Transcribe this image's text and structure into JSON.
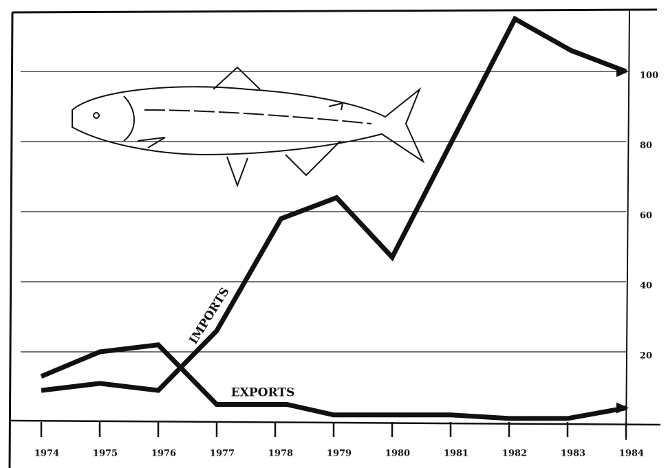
{
  "chart_data": {
    "type": "line",
    "annotations": [
      "IMPORTS",
      "EXPORTS"
    ],
    "series": [
      {
        "name": "IMPORTS",
        "color": "#111111",
        "x": [
          1974,
          1975,
          1976,
          1977,
          1978.1,
          1979.05,
          1980,
          1982.1,
          1983.06,
          1984
        ],
        "values": [
          9,
          11,
          9,
          26,
          58,
          64,
          47,
          115,
          106,
          100
        ]
      },
      {
        "name": "EXPORTS",
        "color": "#111111",
        "x": [
          1974,
          1975,
          1976,
          1977,
          1978.2,
          1979,
          1980,
          1981,
          1982,
          1983,
          1984
        ],
        "values": [
          13,
          20,
          22,
          5,
          5,
          2,
          2,
          2,
          1,
          1,
          4
        ]
      }
    ],
    "xlim": [
      1974,
      1984
    ],
    "xticks": [
      1974,
      1975,
      1976,
      1977,
      1978,
      1979,
      1980,
      1981,
      1982,
      1983,
      1984
    ],
    "ylim": [
      0,
      120
    ],
    "yticks": [
      20,
      40,
      60,
      80,
      100
    ],
    "grid": true
  }
}
